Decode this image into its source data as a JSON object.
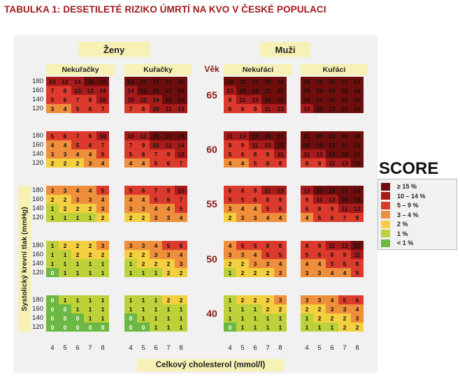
{
  "title": "TABULKA 1: DESETILETÉ RIZIKO ÚMRTÍ NA KVO V ČESKÉ POPULACI",
  "groups": [
    {
      "label": "Ženy",
      "subgroups": [
        "Nekuřačky",
        "Kuřačky"
      ]
    },
    {
      "label": "Muži",
      "subgroups": [
        "Nekuřáci",
        "Kuřáci"
      ]
    }
  ],
  "age_header": "Věk",
  "ages": [
    "65",
    "60",
    "55",
    "50",
    "40"
  ],
  "blood_pressure_levels": [
    "180",
    "160",
    "140",
    "120"
  ],
  "cholesterol_levels": [
    "4",
    "5",
    "6",
    "7",
    "8"
  ],
  "xlabel": "Celkový cholesterol (mmol/l)",
  "ylabel": "Systolický krevní tlak (mmHg)",
  "legend": {
    "title": "SCORE",
    "items": [
      {
        "label": "≥ 15 %",
        "color": "#6f0d0d"
      },
      {
        "label": "10 – 14 %",
        "color": "#a81b1b"
      },
      {
        "label": "5 – 9 %",
        "color": "#dc3a2c"
      },
      {
        "label": "3 – 4 %",
        "color": "#ef8f3b"
      },
      {
        "label": "2 %",
        "color": "#f4cf3f"
      },
      {
        "label": "1 %",
        "color": "#bdd23a"
      },
      {
        "label": "< 1 %",
        "color": "#6cb845"
      }
    ]
  },
  "chart_data": {
    "type": "heatmap",
    "title": "TABULKA 1: DESETILETÉ RIZIKO ÚMRTÍ NA KVO V ČESKÉ POPULACI",
    "xlabel": "Celkový cholesterol (mmol/l)",
    "ylabel": "Systolický krevní tlak (mmHg)",
    "x": [
      4,
      5,
      6,
      7,
      8
    ],
    "y": [
      180,
      160,
      140,
      120
    ],
    "panels": [
      [
        [
          [
            10,
            12,
            14,
            16,
            19
          ],
          [
            7,
            8,
            10,
            12,
            14
          ],
          [
            5,
            6,
            7,
            8,
            10
          ],
          [
            3,
            4,
            5,
            6,
            7
          ]
        ],
        [
          [
            19,
            23,
            27,
            31,
            36
          ],
          [
            14,
            16,
            19,
            22,
            26
          ],
          [
            10,
            12,
            14,
            16,
            19
          ],
          [
            7,
            8,
            10,
            11,
            13
          ]
        ],
        [
          [
            18,
            22,
            25,
            29,
            34
          ],
          [
            13,
            15,
            18,
            21,
            25
          ],
          [
            9,
            11,
            13,
            15,
            18
          ],
          [
            6,
            8,
            9,
            11,
            13
          ]
        ],
        [
          [
            34,
            39,
            45,
            51,
            57
          ],
          [
            25,
            29,
            34,
            39,
            44
          ],
          [
            18,
            21,
            25,
            29,
            33
          ],
          [
            13,
            15,
            18,
            21,
            24
          ]
        ]
      ],
      [
        [
          [
            5,
            6,
            7,
            9,
            10
          ],
          [
            4,
            4,
            5,
            6,
            7
          ],
          [
            3,
            3,
            4,
            4,
            5
          ],
          [
            2,
            2,
            2,
            3,
            4
          ]
        ],
        [
          [
            10,
            12,
            15,
            17,
            20
          ],
          [
            7,
            9,
            10,
            12,
            14
          ],
          [
            5,
            6,
            7,
            9,
            10
          ],
          [
            4,
            4,
            5,
            6,
            7
          ]
        ],
        [
          [
            11,
            13,
            15,
            18,
            21
          ],
          [
            8,
            9,
            11,
            13,
            15
          ],
          [
            5,
            6,
            8,
            9,
            11
          ],
          [
            4,
            4,
            5,
            6,
            8
          ]
        ],
        [
          [
            21,
            25,
            29,
            34,
            39
          ],
          [
            15,
            18,
            21,
            25,
            29
          ],
          [
            11,
            13,
            15,
            18,
            21
          ],
          [
            8,
            9,
            11,
            13,
            15
          ]
        ]
      ],
      [
        [
          [
            3,
            3,
            4,
            4,
            5
          ],
          [
            2,
            2,
            3,
            3,
            4
          ],
          [
            1,
            2,
            2,
            2,
            3
          ],
          [
            1,
            1,
            1,
            1,
            2
          ]
        ],
        [
          [
            5,
            6,
            7,
            9,
            10
          ],
          [
            4,
            4,
            5,
            6,
            7
          ],
          [
            3,
            3,
            4,
            4,
            5
          ],
          [
            2,
            2,
            3,
            3,
            4
          ]
        ],
        [
          [
            6,
            8,
            9,
            11,
            13
          ],
          [
            5,
            5,
            6,
            8,
            9
          ],
          [
            3,
            4,
            4,
            5,
            6
          ],
          [
            2,
            3,
            3,
            4,
            4
          ]
        ],
        [
          [
            13,
            15,
            18,
            21,
            24
          ],
          [
            9,
            11,
            13,
            15,
            18
          ],
          [
            6,
            8,
            9,
            11,
            12
          ],
          [
            4,
            5,
            6,
            7,
            9
          ]
        ]
      ],
      [
        [
          [
            1,
            2,
            2,
            2,
            3
          ],
          [
            1,
            1,
            2,
            2,
            2
          ],
          [
            1,
            1,
            1,
            1,
            1
          ],
          [
            0,
            1,
            1,
            1,
            1
          ]
        ],
        [
          [
            3,
            3,
            4,
            5,
            6
          ],
          [
            2,
            2,
            3,
            3,
            4
          ],
          [
            1,
            2,
            2,
            2,
            3
          ],
          [
            1,
            1,
            1,
            2,
            2
          ]
        ],
        [
          [
            4,
            5,
            5,
            6,
            8
          ],
          [
            3,
            3,
            4,
            5,
            5
          ],
          [
            2,
            2,
            3,
            3,
            4
          ],
          [
            1,
            2,
            2,
            2,
            3
          ]
        ],
        [
          [
            8,
            9,
            11,
            13,
            15
          ],
          [
            5,
            6,
            8,
            9,
            11
          ],
          [
            4,
            4,
            5,
            6,
            8
          ],
          [
            3,
            3,
            4,
            4,
            5
          ]
        ]
      ],
      [
        [
          [
            0,
            1,
            1,
            1,
            1
          ],
          [
            0,
            0,
            1,
            1,
            1
          ],
          [
            0,
            0,
            0,
            1,
            1
          ],
          [
            0,
            0,
            0,
            0,
            0
          ]
        ],
        [
          [
            1,
            1,
            1,
            2,
            2
          ],
          [
            1,
            1,
            1,
            1,
            1
          ],
          [
            0,
            1,
            1,
            1,
            1
          ],
          [
            0,
            0,
            1,
            1,
            1
          ]
        ],
        [
          [
            1,
            2,
            2,
            2,
            3
          ],
          [
            1,
            1,
            1,
            2,
            2
          ],
          [
            1,
            1,
            1,
            1,
            1
          ],
          [
            0,
            1,
            1,
            1,
            1
          ]
        ],
        [
          [
            3,
            3,
            4,
            5,
            6
          ],
          [
            2,
            2,
            3,
            3,
            4
          ],
          [
            1,
            2,
            2,
            2,
            3
          ],
          [
            1,
            1,
            1,
            2,
            2
          ]
        ]
      ]
    ]
  }
}
